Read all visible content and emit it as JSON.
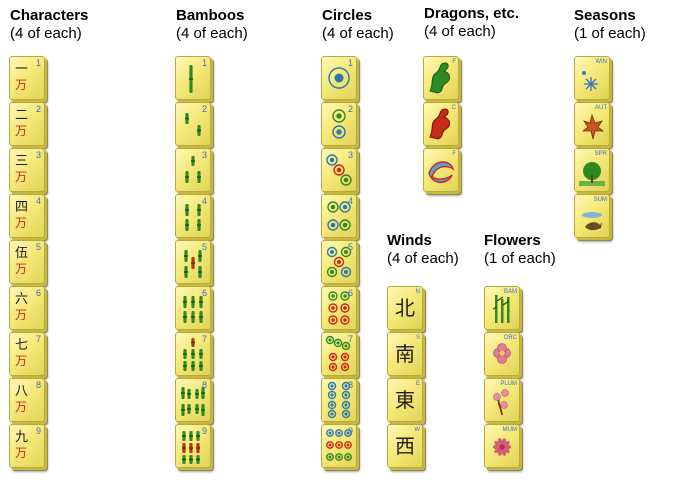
{
  "headers": {
    "characters": {
      "title": "Characters",
      "sub": "(4 of each)"
    },
    "bamboos": {
      "title": "Bamboos",
      "sub": "(4 of each)"
    },
    "circles": {
      "title": "Circles",
      "sub": "(4 of each)"
    },
    "dragons": {
      "title": "Dragons, etc.",
      "sub": "(4 of each)"
    },
    "seasons": {
      "title": "Seasons",
      "sub": "(1 of each)"
    },
    "winds": {
      "title": "Winds",
      "sub": "(4 of each)"
    },
    "flowers": {
      "title": "Flowers",
      "sub": "(1 of each)"
    }
  },
  "characters": {
    "numbers": [
      "1",
      "2",
      "3",
      "4",
      "5",
      "6",
      "7",
      "8",
      "9"
    ],
    "glyphs": [
      "一",
      "二",
      "三",
      "四",
      "伍",
      "六",
      "七",
      "八",
      "九"
    ],
    "wan": "万"
  },
  "bamboos": {
    "numbers": [
      "1",
      "2",
      "3",
      "4",
      "5",
      "6",
      "7",
      "8",
      "9"
    ]
  },
  "circles": {
    "numbers": [
      "1",
      "2",
      "3",
      "4",
      "5",
      "6",
      "7",
      "8",
      "9"
    ]
  },
  "dragons": {
    "labels": [
      "F",
      "C",
      "F"
    ],
    "icons": [
      "green-dragon-icon",
      "red-dragon-icon",
      "white-dragon-icon"
    ]
  },
  "seasons": {
    "labels": [
      "WIN",
      "AUT",
      "SPR",
      "SUM"
    ],
    "icons": [
      "snowflake-icon",
      "maple-leaf-icon",
      "spring-tree-icon",
      "summer-bird-icon"
    ]
  },
  "winds": {
    "labels": [
      "N",
      "S",
      "E",
      "W"
    ],
    "glyphs": [
      "北",
      "南",
      "東",
      "西"
    ]
  },
  "flowers": {
    "labels": [
      "BAM",
      "ORC",
      "PLUM",
      "MUM"
    ],
    "icons": [
      "bamboo-plant-icon",
      "orchid-icon",
      "plum-blossom-icon",
      "chrysanthemum-icon"
    ]
  },
  "colors": {
    "tile": "#f6e979",
    "number_blue": "#3b6fc9",
    "wan_red": "#c72a1a",
    "bamboo_green": "#2f8a24",
    "circle_blue": "#2a7ab0"
  }
}
